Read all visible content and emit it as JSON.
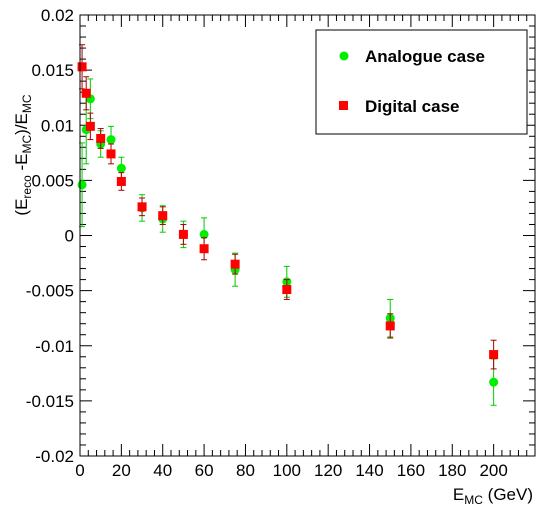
{
  "chart_data": {
    "type": "scatter",
    "title": "",
    "xlabel": "E",
    "xlabel_sub": "MC",
    "xlabel_unit": " (GeV)",
    "ylabel_parts": [
      "(E",
      "reco",
      " -E",
      "MC",
      ")/E",
      "MC"
    ],
    "xlim": [
      0,
      220
    ],
    "ylim": [
      -0.02,
      0.02
    ],
    "x_ticks": [
      0,
      20,
      40,
      60,
      80,
      100,
      120,
      140,
      160,
      180,
      200
    ],
    "x_tick_labels": [
      "0",
      "20",
      "40",
      "60",
      "80",
      "100",
      "120",
      "140",
      "160",
      "180",
      "200"
    ],
    "y_ticks": [
      -0.02,
      -0.015,
      -0.01,
      -0.005,
      0,
      0.005,
      0.01,
      0.015,
      0.02
    ],
    "y_tick_labels": [
      "-0.02",
      "-0.015",
      "-0.01",
      "-0.005",
      "0",
      "0.005",
      "0.01",
      "0.015",
      "0.02"
    ],
    "grid": false,
    "legend_position": "top-right",
    "series": [
      {
        "name": "Analogue case",
        "marker": "circle",
        "color": "#00ee00",
        "errcolor": "#00cc00",
        "x": [
          1,
          3,
          5,
          10,
          15,
          20,
          30,
          40,
          50,
          60,
          75,
          100,
          150,
          200
        ],
        "y": [
          0.0046,
          0.0096,
          0.0124,
          0.0083,
          0.0087,
          0.0061,
          0.0025,
          0.0015,
          0.0001,
          0.0001,
          -0.0031,
          -0.0042,
          -0.0075,
          -0.0133
        ],
        "err": [
          0.0038,
          0.0031,
          0.0018,
          0.0012,
          0.0012,
          0.001,
          0.0012,
          0.0012,
          0.0012,
          0.0015,
          0.0015,
          0.0014,
          0.0017,
          0.0021
        ]
      },
      {
        "name": "Digital case",
        "marker": "square",
        "color": "#ff0000",
        "errcolor": "#aa0000",
        "x": [
          1,
          3,
          5,
          10,
          15,
          20,
          30,
          40,
          50,
          60,
          75,
          100,
          150,
          200
        ],
        "y": [
          0.0153,
          0.0129,
          0.0099,
          0.0088,
          0.0074,
          0.0049,
          0.0026,
          0.0018,
          0.0001,
          -0.0012,
          -0.0026,
          -0.0049,
          -0.0082,
          -0.0108
        ],
        "err": [
          0.002,
          0.0015,
          0.0012,
          0.0009,
          0.0009,
          0.0008,
          0.0008,
          0.0008,
          0.0009,
          0.001,
          0.0009,
          0.0009,
          0.0011,
          0.0013
        ]
      }
    ]
  }
}
